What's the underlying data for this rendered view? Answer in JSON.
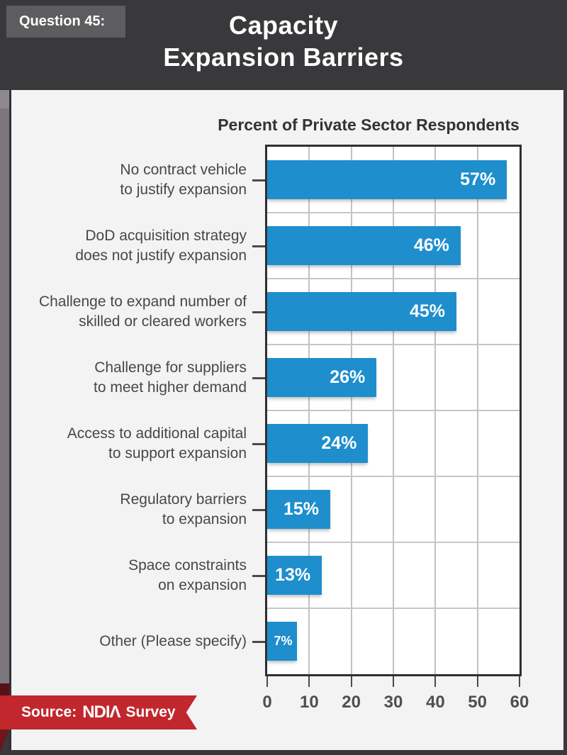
{
  "header": {
    "question": "Question 45:",
    "title_lines": [
      "Capacity",
      "Expansion Barriers"
    ]
  },
  "chart_data": {
    "type": "bar",
    "orientation": "horizontal",
    "title": "Percent of Private Sector Respondents",
    "categories": [
      "No contract vehicle\nto justify expansion",
      "DoD acquisition strategy\ndoes not justify expansion",
      "Challenge to expand number of\nskilled or cleared workers",
      "Challenge for suppliers\nto meet higher demand",
      "Access to additional capital\nto support expansion",
      "Regulatory barriers\nto expansion",
      "Space constraints\non expansion",
      "Other (Please specify)"
    ],
    "values": [
      57,
      46,
      45,
      26,
      24,
      15,
      13,
      7
    ],
    "value_labels": [
      "57%",
      "46%",
      "45%",
      "26%",
      "24%",
      "15%",
      "13%",
      "7%"
    ],
    "xlim": [
      0,
      60
    ],
    "x_ticks": [
      0,
      10,
      20,
      30,
      40,
      50,
      60
    ],
    "grid": "on",
    "legend": "none",
    "bar_color": "#1e8ecd"
  },
  "source": {
    "prefix": "Source:",
    "org": "NDIA",
    "org_display": "NDIΛ",
    "suffix": "Survey"
  },
  "colors": {
    "accent_blue": "#1e8ecd",
    "ribbon_red": "#c1272d",
    "header_charcoal": "#39383a",
    "panel_background": "#f3f3f4",
    "strip_gray": "#7c777c",
    "strip_maroon": "#571116",
    "fold_red": "#6f1519"
  }
}
